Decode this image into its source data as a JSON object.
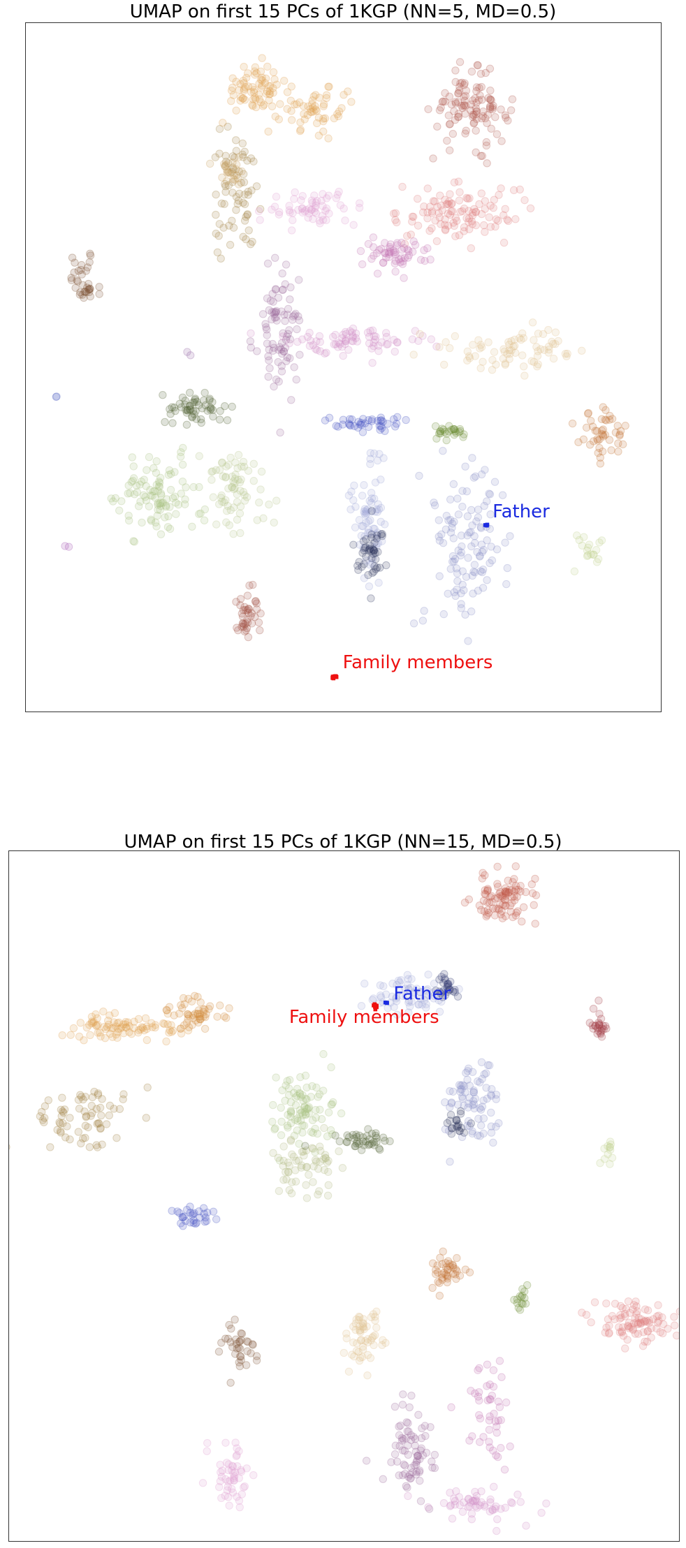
{
  "chart_data": [
    {
      "type": "scatter",
      "title": "UMAP on first 15 PCs of 1KGP (NN=5, MD=0.5)",
      "xlabel": "",
      "ylabel": "",
      "axes_ticks": "none",
      "grid": false,
      "xlim": [
        0,
        1
      ],
      "ylim": [
        0,
        1
      ],
      "background_point_alpha": 0.18,
      "clusters": [
        {
          "color": "#e0a050",
          "x": 0.36,
          "y": 0.905,
          "sx": 0.025,
          "sy": 0.018,
          "n": 70
        },
        {
          "color": "#e0a050",
          "x": 0.46,
          "y": 0.875,
          "sx": 0.03,
          "sy": 0.016,
          "n": 55
        },
        {
          "color": "#b05a50",
          "x": 0.7,
          "y": 0.875,
          "sx": 0.03,
          "sy": 0.025,
          "n": 110
        },
        {
          "color": "#a08040",
          "x": 0.33,
          "y": 0.75,
          "sx": 0.018,
          "sy": 0.045,
          "n": 70
        },
        {
          "color": "#c9a060",
          "x": 0.33,
          "y": 0.79,
          "sx": 0.025,
          "sy": 0.012,
          "n": 20
        },
        {
          "color": "#e0a0d0",
          "x": 0.45,
          "y": 0.73,
          "sx": 0.035,
          "sy": 0.012,
          "n": 60
        },
        {
          "color": "#e08080",
          "x": 0.68,
          "y": 0.725,
          "sx": 0.045,
          "sy": 0.02,
          "n": 110
        },
        {
          "color": "#c070b0",
          "x": 0.58,
          "y": 0.665,
          "sx": 0.03,
          "sy": 0.012,
          "n": 55
        },
        {
          "color": "#7a5030",
          "x": 0.09,
          "y": 0.625,
          "sx": 0.012,
          "sy": 0.02,
          "n": 35
        },
        {
          "color": "#9a6a9a",
          "x": 0.4,
          "y": 0.555,
          "sx": 0.018,
          "sy": 0.05,
          "n": 85
        },
        {
          "color": "#d090c8",
          "x": 0.53,
          "y": 0.54,
          "sx": 0.06,
          "sy": 0.01,
          "n": 75
        },
        {
          "color": "#e0c090",
          "x": 0.77,
          "y": 0.525,
          "sx": 0.05,
          "sy": 0.015,
          "n": 75
        },
        {
          "color": "#506030",
          "x": 0.27,
          "y": 0.44,
          "sx": 0.022,
          "sy": 0.012,
          "n": 55
        },
        {
          "color": "#4050c0",
          "x": 0.54,
          "y": 0.42,
          "sx": 0.03,
          "sy": 0.006,
          "n": 40
        },
        {
          "color": "#6a8a30",
          "x": 0.67,
          "y": 0.405,
          "sx": 0.015,
          "sy": 0.006,
          "n": 25
        },
        {
          "color": "#c07030",
          "x": 0.91,
          "y": 0.405,
          "sx": 0.018,
          "sy": 0.015,
          "n": 45
        },
        {
          "color": "#a8c080",
          "x": 0.21,
          "y": 0.31,
          "sx": 0.035,
          "sy": 0.028,
          "n": 100
        },
        {
          "color": "#b8c890",
          "x": 0.33,
          "y": 0.32,
          "sx": 0.025,
          "sy": 0.03,
          "n": 70
        },
        {
          "color": "#a0a8d8",
          "x": 0.54,
          "y": 0.29,
          "sx": 0.015,
          "sy": 0.05,
          "n": 70
        },
        {
          "color": "#303860",
          "x": 0.54,
          "y": 0.235,
          "sx": 0.012,
          "sy": 0.022,
          "n": 45
        },
        {
          "color": "#8890c8",
          "x": 0.7,
          "y": 0.25,
          "sx": 0.03,
          "sy": 0.055,
          "n": 110
        },
        {
          "color": "#c0d090",
          "x": 0.89,
          "y": 0.235,
          "sx": 0.018,
          "sy": 0.012,
          "n": 18
        },
        {
          "color": "#a05040",
          "x": 0.35,
          "y": 0.14,
          "sx": 0.012,
          "sy": 0.022,
          "n": 40
        },
        {
          "color": "#9060a0",
          "x": 0.26,
          "y": 0.52,
          "sx": 0.004,
          "sy": 0.004,
          "n": 2
        },
        {
          "color": "#5060c0",
          "x": 0.05,
          "y": 0.455,
          "sx": 0.004,
          "sy": 0.004,
          "n": 2
        },
        {
          "color": "#a050b0",
          "x": 0.06,
          "y": 0.24,
          "sx": 0.004,
          "sy": 0.004,
          "n": 2
        },
        {
          "color": "#8890c8",
          "x": 0.63,
          "y": 0.135,
          "sx": 0.006,
          "sy": 0.006,
          "n": 3
        }
      ],
      "highlights": [
        {
          "label": "Father",
          "color": "#1a2ae0",
          "x": 0.725,
          "y": 0.27,
          "n": 3,
          "label_dx": 0.01,
          "label_dy": 0.012
        },
        {
          "label": "Family members",
          "color": "#ee1010",
          "x": 0.487,
          "y": 0.05,
          "n": 10,
          "label_dx": 0.012,
          "label_dy": 0.013
        }
      ]
    },
    {
      "type": "scatter",
      "title": "UMAP on first 15 PCs of 1KGP (NN=15, MD=0.5)",
      "xlabel": "",
      "ylabel": "",
      "axes_ticks": "none",
      "grid": false,
      "xlim": [
        0,
        1
      ],
      "ylim": [
        0,
        1
      ],
      "background_point_alpha": 0.18,
      "clusters": [
        {
          "color": "#c05848",
          "x": 0.74,
          "y": 0.93,
          "sx": 0.025,
          "sy": 0.018,
          "n": 90
        },
        {
          "color": "#a0a8d8",
          "x": 0.6,
          "y": 0.79,
          "sx": 0.03,
          "sy": 0.015,
          "n": 70
        },
        {
          "color": "#303870",
          "x": 0.66,
          "y": 0.805,
          "sx": 0.01,
          "sy": 0.01,
          "n": 25
        },
        {
          "color": "#e0a050",
          "x": 0.17,
          "y": 0.745,
          "sx": 0.04,
          "sy": 0.01,
          "n": 85
        },
        {
          "color": "#d08838",
          "x": 0.28,
          "y": 0.765,
          "sx": 0.02,
          "sy": 0.012,
          "n": 50
        },
        {
          "color": "#a03840",
          "x": 0.88,
          "y": 0.745,
          "sx": 0.006,
          "sy": 0.012,
          "n": 25
        },
        {
          "color": "#8890c8",
          "x": 0.69,
          "y": 0.63,
          "sx": 0.02,
          "sy": 0.03,
          "n": 75
        },
        {
          "color": "#303860",
          "x": 0.67,
          "y": 0.605,
          "sx": 0.01,
          "sy": 0.01,
          "n": 20
        },
        {
          "color": "#a08040",
          "x": 0.11,
          "y": 0.615,
          "sx": 0.04,
          "sy": 0.022,
          "n": 70
        },
        {
          "color": "#a8c080",
          "x": 0.44,
          "y": 0.625,
          "sx": 0.022,
          "sy": 0.025,
          "n": 90
        },
        {
          "color": "#b0b880",
          "x": 0.44,
          "y": 0.545,
          "sx": 0.025,
          "sy": 0.018,
          "n": 60
        },
        {
          "color": "#506030",
          "x": 0.53,
          "y": 0.58,
          "sx": 0.02,
          "sy": 0.008,
          "n": 40
        },
        {
          "color": "#c0d090",
          "x": 0.895,
          "y": 0.565,
          "sx": 0.006,
          "sy": 0.01,
          "n": 12
        },
        {
          "color": "#4050c0",
          "x": 0.28,
          "y": 0.47,
          "sx": 0.018,
          "sy": 0.006,
          "n": 30
        },
        {
          "color": "#c07030",
          "x": 0.65,
          "y": 0.39,
          "sx": 0.015,
          "sy": 0.012,
          "n": 40
        },
        {
          "color": "#6a8a30",
          "x": 0.765,
          "y": 0.355,
          "sx": 0.006,
          "sy": 0.01,
          "n": 15
        },
        {
          "color": "#e08080",
          "x": 0.93,
          "y": 0.315,
          "sx": 0.03,
          "sy": 0.015,
          "n": 90
        },
        {
          "color": "#7a5030",
          "x": 0.34,
          "y": 0.28,
          "sx": 0.012,
          "sy": 0.018,
          "n": 35
        },
        {
          "color": "#e0c090",
          "x": 0.53,
          "y": 0.29,
          "sx": 0.015,
          "sy": 0.025,
          "n": 55
        },
        {
          "color": "#9a6a9a",
          "x": 0.6,
          "y": 0.125,
          "sx": 0.02,
          "sy": 0.035,
          "n": 75
        },
        {
          "color": "#c070b0",
          "x": 0.72,
          "y": 0.18,
          "sx": 0.015,
          "sy": 0.035,
          "n": 45
        },
        {
          "color": "#e0a0d0",
          "x": 0.33,
          "y": 0.095,
          "sx": 0.015,
          "sy": 0.022,
          "n": 50
        },
        {
          "color": "#d090c8",
          "x": 0.7,
          "y": 0.055,
          "sx": 0.035,
          "sy": 0.012,
          "n": 55
        }
      ],
      "highlights": [
        {
          "label": "Father",
          "color": "#1a2ae0",
          "x": 0.564,
          "y": 0.78,
          "n": 3,
          "label_dx": 0.01,
          "label_dy": 0.005
        },
        {
          "label": "Family members",
          "color": "#ee1010",
          "x": 0.548,
          "y": 0.776,
          "n": 10,
          "label_dx": -0.13,
          "label_dy": -0.025
        }
      ]
    }
  ]
}
